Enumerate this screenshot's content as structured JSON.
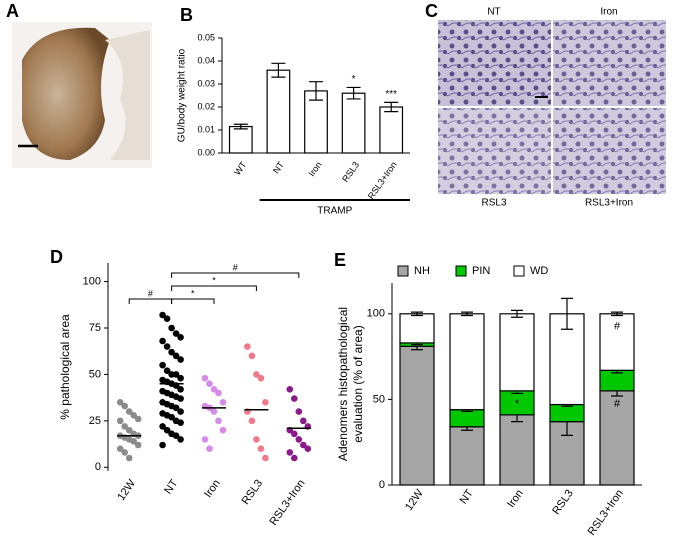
{
  "images": [
    {
      "panel": "A"
    },
    {
      "panel": "C",
      "captions": [
        "NT",
        "Iron",
        "RSL3",
        "RSL3+Iron"
      ]
    }
  ],
  "chart_data": [
    {
      "type": "bar",
      "panel": "B",
      "ylabel": "GU/body weight ratio",
      "categories": [
        "WT",
        "NT",
        "Iron",
        "RSL3",
        "RSL3+Iron"
      ],
      "values": [
        0.0115,
        0.036,
        0.027,
        0.026,
        0.02
      ],
      "errors": [
        0.001,
        0.003,
        0.004,
        0.0025,
        0.002
      ],
      "color": "#ffffff",
      "ylim": [
        0,
        0.05
      ],
      "yticks": [
        {
          "value": 0,
          "label": "0.00"
        },
        0.01,
        0.02,
        0.03,
        0.04,
        0.05
      ],
      "annotations": [
        {
          "category": "RSL3",
          "text": "*"
        },
        {
          "category": "RSL3+Iron",
          "text": "***"
        }
      ],
      "group": {
        "label": "TRAMP",
        "categories": [
          "NT",
          "Iron",
          "RSL3",
          "RSL3+Iron"
        ]
      }
    },
    {
      "type": "strip",
      "panel": "D",
      "ylabel": "% pathological area",
      "categories": [
        "12W",
        "NT",
        "Iron",
        "RSL3",
        "RSL3+Iron"
      ],
      "colors": [
        "#8c8c8c",
        "#000000",
        "#d58ce8",
        "#f07a8a",
        "#8b1a8b"
      ],
      "points": [
        [
          35,
          33,
          30,
          28,
          26,
          25,
          22,
          20,
          18,
          17,
          17,
          16,
          15,
          14,
          12,
          10,
          8,
          5
        ],
        [
          82,
          80,
          75,
          72,
          70,
          68,
          65,
          62,
          60,
          58,
          55,
          52,
          50,
          50,
          48,
          47,
          46,
          45,
          44,
          42,
          41,
          40,
          39,
          38,
          37,
          35,
          34,
          33,
          32,
          30,
          29,
          28,
          27,
          25,
          24,
          22,
          20,
          18,
          17,
          15,
          12
        ],
        [
          48,
          45,
          42,
          40,
          35,
          33,
          32,
          30,
          25,
          20,
          15,
          10
        ],
        [
          65,
          60,
          50,
          48,
          35,
          30,
          25,
          15,
          10,
          5
        ],
        [
          42,
          37,
          30,
          25,
          22,
          20,
          18,
          15,
          12,
          10,
          8,
          5
        ]
      ],
      "medians": [
        17,
        45,
        32,
        31,
        21
      ],
      "ylim": [
        -2,
        110
      ],
      "yticks": [
        0,
        25,
        50,
        75,
        100
      ],
      "comparisons": [
        {
          "groups": [
            "12W",
            "NT"
          ],
          "label": "#"
        },
        {
          "groups": [
            "NT",
            "Iron"
          ],
          "label": "*"
        },
        {
          "groups": [
            "NT",
            "RSL3"
          ],
          "label": "*"
        },
        {
          "groups": [
            "NT",
            "RSL3+Iron"
          ],
          "label": "#"
        }
      ]
    },
    {
      "type": "stacked_bar",
      "panel": "E",
      "ylabel": [
        "Adenomers histopathological",
        "evaluation (% of area)"
      ],
      "categories": [
        "12W",
        "NT",
        "Iron",
        "RSL3",
        "RSL3+Iron"
      ],
      "series": [
        {
          "name": "NH",
          "color": "#a6a6a6",
          "values": [
            81,
            34,
            41,
            37,
            55
          ],
          "errors": [
            2,
            2,
            4,
            8,
            3
          ]
        },
        {
          "name": "PIN",
          "color": "#00c800",
          "values": [
            2,
            10,
            14,
            10,
            12
          ],
          "errors": [
            1,
            1,
            1.5,
            1,
            1.5
          ]
        },
        {
          "name": "WD",
          "color": "#ffffff",
          "values": [
            17,
            56,
            45,
            53,
            33
          ],
          "errors": [
            1,
            1,
            2,
            9,
            1
          ]
        }
      ],
      "ylim": [
        0,
        118
      ],
      "yticks": [
        0,
        50,
        100
      ],
      "annotations": [
        {
          "category": "Iron",
          "series": "PIN",
          "text": "*"
        },
        {
          "category": "RSL3+Iron",
          "series": "NH",
          "text": "#"
        },
        {
          "category": "RSL3+Iron",
          "series": "WD",
          "text": "#"
        }
      ]
    }
  ]
}
